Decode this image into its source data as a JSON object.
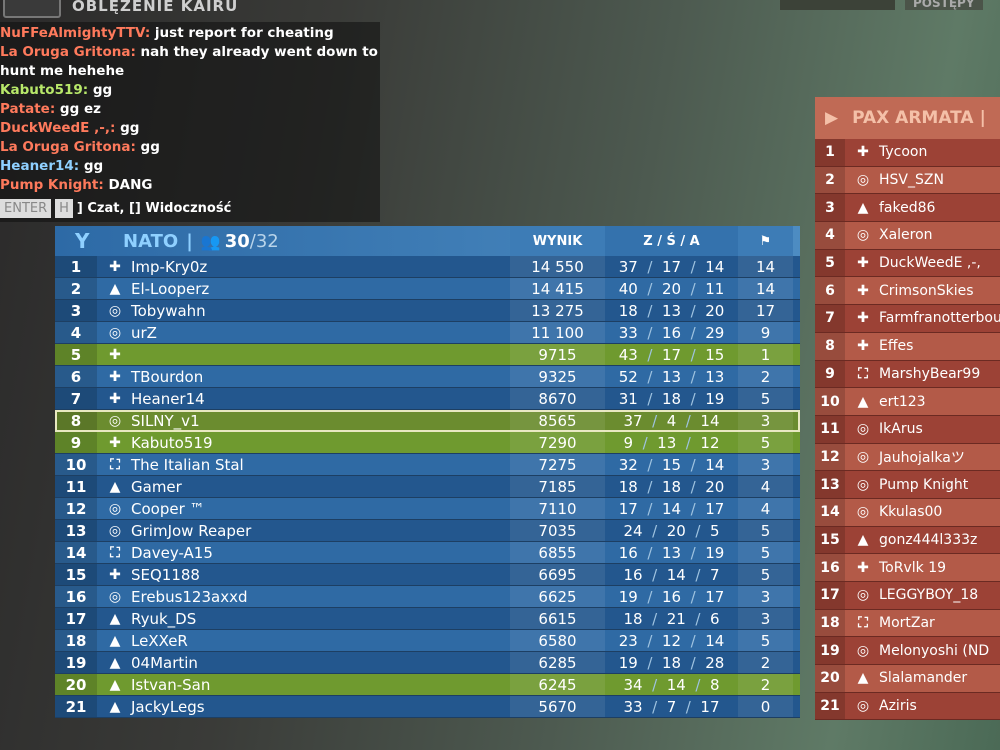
{
  "header": {
    "map_name": "OBLĘŻENIE KAIRU",
    "tabs": [
      "POSTĘPY"
    ]
  },
  "nato": {
    "team": "NATO",
    "players": "30",
    "max": "32",
    "col_score": "WYNIK",
    "col_zsa": "Z / Ś / A",
    "col_flag_icon": "flag-icon",
    "color": "#2f6aa4",
    "rows": [
      {
        "rank": "1",
        "icon": "plus",
        "name": "Imp-Kry0z",
        "score": "14 550",
        "k": "37",
        "d": "17",
        "a": "14",
        "f": "14"
      },
      {
        "rank": "2",
        "icon": "triangle",
        "name": "El-Looperz",
        "score": "14 415",
        "k": "40",
        "d": "20",
        "a": "11",
        "f": "14"
      },
      {
        "rank": "3",
        "icon": "circle",
        "name": "Tobywahn",
        "score": "13 275",
        "k": "18",
        "d": "13",
        "a": "20",
        "f": "17"
      },
      {
        "rank": "4",
        "icon": "circle",
        "name": "urZ",
        "score": "11 100",
        "k": "33",
        "d": "16",
        "a": "29",
        "f": "9"
      },
      {
        "rank": "5",
        "icon": "plus",
        "name": "",
        "score": "9715",
        "k": "43",
        "d": "17",
        "a": "15",
        "f": "1",
        "hl": "g"
      },
      {
        "rank": "6",
        "icon": "plus",
        "name": "TBourdon",
        "score": "9325",
        "k": "52",
        "d": "13",
        "a": "13",
        "f": "2"
      },
      {
        "rank": "7",
        "icon": "plus",
        "name": "Heaner14",
        "score": "8670",
        "k": "31",
        "d": "18",
        "a": "19",
        "f": "5"
      },
      {
        "rank": "8",
        "icon": "circle",
        "name": "SILNY_v1",
        "score": "8565",
        "k": "37",
        "d": "4",
        "a": "14",
        "f": "3",
        "hl": "me"
      },
      {
        "rank": "9",
        "icon": "plus",
        "name": "Kabuto519",
        "score": "7290",
        "k": "9",
        "d": "13",
        "a": "12",
        "f": "5",
        "hl": "g"
      },
      {
        "rank": "10",
        "icon": "bracket",
        "name": "The Italian Stal",
        "score": "7275",
        "k": "32",
        "d": "15",
        "a": "14",
        "f": "3"
      },
      {
        "rank": "11",
        "icon": "triangle",
        "name": "Gamer",
        "score": "7185",
        "k": "18",
        "d": "18",
        "a": "20",
        "f": "4"
      },
      {
        "rank": "12",
        "icon": "circle",
        "name": "Cooper ™",
        "score": "7110",
        "k": "17",
        "d": "14",
        "a": "17",
        "f": "4"
      },
      {
        "rank": "13",
        "icon": "circle",
        "name": "GrimJow Reaper",
        "score": "7035",
        "k": "24",
        "d": "20",
        "a": "5",
        "f": "5"
      },
      {
        "rank": "14",
        "icon": "bracket",
        "name": "Davey-A15",
        "score": "6855",
        "k": "16",
        "d": "13",
        "a": "19",
        "f": "5"
      },
      {
        "rank": "15",
        "icon": "plus",
        "name": "SEQ1188",
        "score": "6695",
        "k": "16",
        "d": "14",
        "a": "7",
        "f": "5"
      },
      {
        "rank": "16",
        "icon": "circle",
        "name": "Erebus123axxd",
        "score": "6625",
        "k": "19",
        "d": "16",
        "a": "17",
        "f": "3"
      },
      {
        "rank": "17",
        "icon": "triangle",
        "name": "Ryuk_DS",
        "score": "6615",
        "k": "18",
        "d": "21",
        "a": "6",
        "f": "3"
      },
      {
        "rank": "18",
        "icon": "triangle",
        "name": "LeXXeR",
        "score": "6580",
        "k": "23",
        "d": "12",
        "a": "14",
        "f": "5"
      },
      {
        "rank": "19",
        "icon": "triangle",
        "name": "04Martin",
        "score": "6285",
        "k": "19",
        "d": "18",
        "a": "28",
        "f": "2"
      },
      {
        "rank": "20",
        "icon": "triangle",
        "name": "Istvan-San",
        "score": "6245",
        "k": "34",
        "d": "14",
        "a": "8",
        "f": "2",
        "hl": "g"
      },
      {
        "rank": "21",
        "icon": "triangle",
        "name": "JackyLegs",
        "score": "5670",
        "k": "33",
        "d": "7",
        "a": "17",
        "f": "0"
      }
    ]
  },
  "pax": {
    "team": "PAX ARMATA",
    "color": "#b35a48",
    "rows": [
      {
        "rank": "1",
        "icon": "plus",
        "name": "Tycoon"
      },
      {
        "rank": "2",
        "icon": "circle",
        "name": "HSV_SZN"
      },
      {
        "rank": "3",
        "icon": "triangle",
        "name": "faked86"
      },
      {
        "rank": "4",
        "icon": "circle",
        "name": "Xaleron"
      },
      {
        "rank": "5",
        "icon": "plus",
        "name": "DuckWeedE ,-,"
      },
      {
        "rank": "6",
        "icon": "plus",
        "name": "CrimsonSkies"
      },
      {
        "rank": "7",
        "icon": "plus",
        "name": "Farmfranotterbou"
      },
      {
        "rank": "8",
        "icon": "plus",
        "name": "Effes"
      },
      {
        "rank": "9",
        "icon": "bracket",
        "name": "MarshyBear99"
      },
      {
        "rank": "10",
        "icon": "triangle",
        "name": "ert123"
      },
      {
        "rank": "11",
        "icon": "circle",
        "name": "IkArus"
      },
      {
        "rank": "12",
        "icon": "circle",
        "name": "Jauhojalkaツ"
      },
      {
        "rank": "13",
        "icon": "circle",
        "name": "Pump Knight"
      },
      {
        "rank": "14",
        "icon": "circle",
        "name": "Kkulas00"
      },
      {
        "rank": "15",
        "icon": "triangle",
        "name": "gonz444l333z"
      },
      {
        "rank": "16",
        "icon": "plus",
        "name": "ToRvlk 19"
      },
      {
        "rank": "17",
        "icon": "circle",
        "name": "LEGGYBOY_18"
      },
      {
        "rank": "18",
        "icon": "bracket",
        "name": "MortZar"
      },
      {
        "rank": "19",
        "icon": "circle",
        "name": "Melonyoshi (ND"
      },
      {
        "rank": "20",
        "icon": "triangle",
        "name": "Slalamander"
      },
      {
        "rank": "21",
        "icon": "circle",
        "name": "Aziris"
      }
    ]
  },
  "chat": {
    "messages": [
      {
        "user": "NuFFeAlmightyTTV:",
        "text": " just report for cheating",
        "color": "#ff7a5c"
      },
      {
        "user": "La Oruga Gritona:",
        "text": " nah they already went down to",
        "color": "#ff7a5c"
      },
      {
        "user": "",
        "text": "hunt me hehehe",
        "color": "#ff7a5c"
      },
      {
        "user": "Kabuto519:",
        "text": " gg",
        "color": "#b8e86a"
      },
      {
        "user": "Patate:",
        "text": " gg ez",
        "color": "#ff7a5c"
      },
      {
        "user": "DuckWeedE ,-,:",
        "text": " gg",
        "color": "#ff7a5c"
      },
      {
        "user": "La Oruga Gritona:",
        "text": " gg",
        "color": "#ff7a5c"
      },
      {
        "user": "Heaner14:",
        "text": " gg",
        "color": "#8fd0ff"
      },
      {
        "user": "Pump Knight:",
        "text": " DANG",
        "color": "#ff7a5c"
      }
    ],
    "key_enter": "ENTER",
    "key_h": "H",
    "hint": "] Czat, [] Widoczność"
  }
}
